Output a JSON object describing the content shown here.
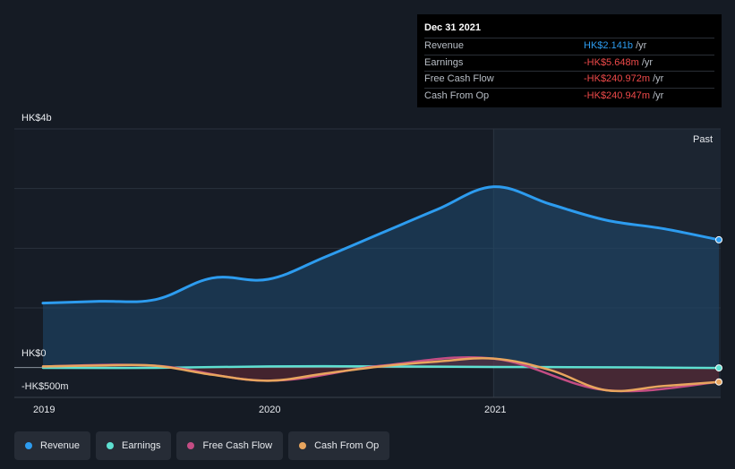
{
  "tooltip": {
    "date": "Dec 31 2021",
    "rows": [
      {
        "label": "Revenue",
        "value": "HK$2.141b",
        "unit": "/yr",
        "color": "#2d9cef"
      },
      {
        "label": "Earnings",
        "value": "-HK$5.648m",
        "unit": "/yr",
        "color": "#ef4a4a"
      },
      {
        "label": "Free Cash Flow",
        "value": "-HK$240.972m",
        "unit": "/yr",
        "color": "#ef4a4a"
      },
      {
        "label": "Cash From Op",
        "value": "-HK$240.947m",
        "unit": "/yr",
        "color": "#ef4a4a"
      }
    ]
  },
  "chart_data": {
    "type": "line",
    "title": "",
    "y_top_label": "HK$4b",
    "y_zero_label": "HK$0",
    "y_bottom_label": "-HK$500m",
    "past_label": "Past",
    "ylim": [
      -500,
      4000
    ],
    "xlim": [
      2019.0,
      2022.0
    ],
    "x_ticks": [
      {
        "value": 2019.0,
        "label": "2019"
      },
      {
        "value": 2020.0,
        "label": "2020"
      },
      {
        "value": 2021.0,
        "label": "2021"
      }
    ],
    "past_start": 2021.0,
    "series": [
      {
        "name": "Revenue",
        "color": "#2d9cef",
        "fill": true,
        "x": [
          2019.0,
          2019.25,
          2019.5,
          2019.75,
          2020.0,
          2020.25,
          2020.5,
          2020.75,
          2021.0,
          2021.25,
          2021.5,
          2021.75,
          2022.0
        ],
        "values": [
          1080,
          1110,
          1140,
          1500,
          1480,
          1850,
          2250,
          2650,
          3030,
          2740,
          2470,
          2330,
          2141
        ]
      },
      {
        "name": "Earnings",
        "color": "#5ee0d1",
        "fill": false,
        "x": [
          2019.0,
          2019.5,
          2020.0,
          2020.5,
          2021.0,
          2021.5,
          2022.0
        ],
        "values": [
          -5,
          -5,
          20,
          20,
          10,
          5,
          -6
        ]
      },
      {
        "name": "Free Cash Flow",
        "color": "#c44d84",
        "fill": false,
        "x": [
          2019.0,
          2019.5,
          2020.0,
          2020.5,
          2021.0,
          2021.5,
          2022.0
        ],
        "values": [
          20,
          30,
          -220,
          30,
          150,
          -380,
          -241
        ]
      },
      {
        "name": "Cash From Op",
        "color": "#e8a55e",
        "fill": false,
        "x": [
          2019.0,
          2019.25,
          2019.5,
          2019.75,
          2020.0,
          2020.25,
          2020.5,
          2020.75,
          2021.0,
          2021.25,
          2021.5,
          2021.75,
          2022.0
        ],
        "values": [
          20,
          35,
          30,
          -120,
          -220,
          -100,
          20,
          100,
          150,
          -40,
          -380,
          -310,
          -241
        ]
      }
    ]
  },
  "legend": [
    {
      "label": "Revenue",
      "color": "#2d9cef"
    },
    {
      "label": "Earnings",
      "color": "#5ee0d1"
    },
    {
      "label": "Free Cash Flow",
      "color": "#c44d84"
    },
    {
      "label": "Cash From Op",
      "color": "#e8a55e"
    }
  ]
}
